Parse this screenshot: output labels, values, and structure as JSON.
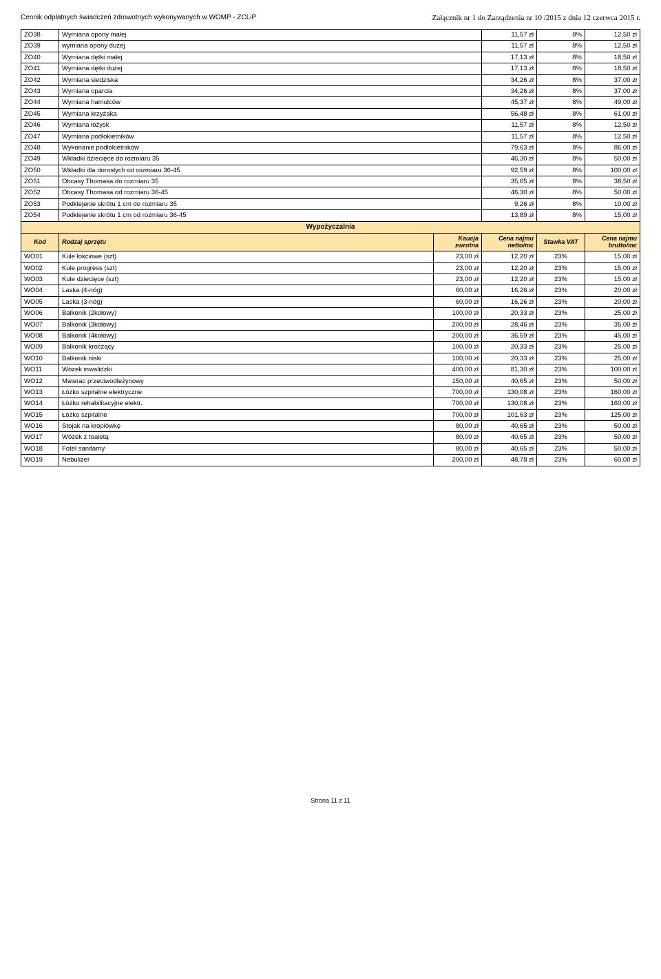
{
  "header": {
    "left": "Cennik odpłatnych świadczeń zdrowotnych wykonywanych w WOMP - ZCLiP",
    "right": "Załącznik nr 1 do Zarządzenia nr 10 /2015 z dnia 12 czerwca 2015 r."
  },
  "table1": {
    "rows": [
      {
        "code": "ZO38",
        "desc": "Wymiana opony małej",
        "v1": "11,57 zł",
        "v2": "8%",
        "v3": "12,50 zł"
      },
      {
        "code": "ZO39",
        "desc": "wymiana opony dużej",
        "v1": "11,57 zł",
        "v2": "8%",
        "v3": "12,50 zł"
      },
      {
        "code": "ZO40",
        "desc": "Wymiana dętki małej",
        "v1": "17,13 zł",
        "v2": "8%",
        "v3": "18,50 zł"
      },
      {
        "code": "ZO41",
        "desc": "Wymiana dętki dużej",
        "v1": "17,13 zł",
        "v2": "8%",
        "v3": "18,50 zł"
      },
      {
        "code": "ZO42",
        "desc": "Wymiana siedziska",
        "v1": "34,26 zł",
        "v2": "8%",
        "v3": "37,00 zł"
      },
      {
        "code": "ZO43",
        "desc": "Wymiana oparcia",
        "v1": "34,26 zł",
        "v2": "8%",
        "v3": "37,00 zł"
      },
      {
        "code": "ZO44",
        "desc": "Wymiana hamulców",
        "v1": "45,37 zł",
        "v2": "8%",
        "v3": "49,00 zł"
      },
      {
        "code": "ZO45",
        "desc": "Wymiana krzyżaka",
        "v1": "56,48 zł",
        "v2": "8%",
        "v3": "61,00 zł"
      },
      {
        "code": "ZO46",
        "desc": "Wymiana łożysk",
        "v1": "11,57 zł",
        "v2": "8%",
        "v3": "12,50 zł"
      },
      {
        "code": "ZO47",
        "desc": "Wymiana podłokietników",
        "v1": "11,57 zł",
        "v2": "8%",
        "v3": "12,50 zł"
      },
      {
        "code": "ZO48",
        "desc": "Wykonanie podłokietników",
        "v1": "79,63 zł",
        "v2": "8%",
        "v3": "86,00 zł"
      },
      {
        "code": "ZO49",
        "desc": "Wkładki dziecięce do rozmiaru 35",
        "v1": "46,30 zł",
        "v2": "8%",
        "v3": "50,00 zł"
      },
      {
        "code": "ZO50",
        "desc": "Wkładki dla dorosłych od rozmiaru 36-45",
        "v1": "92,59 zł",
        "v2": "8%",
        "v3": "100,00 zł"
      },
      {
        "code": "ZO51",
        "desc": "Obcasy Thomasa do rozmiaru 35",
        "v1": "35,65 zł",
        "v2": "8%",
        "v3": "38,50 zł"
      },
      {
        "code": "ZO52",
        "desc": "Obcasy Thomasa od rozmiaru 36-45",
        "v1": "46,30 zł",
        "v2": "8%",
        "v3": "50,00 zł"
      },
      {
        "code": "ZO53",
        "desc": "Podklejenie skrótu 1 cm do rozmiaru 35",
        "v1": "9,26 zł",
        "v2": "8%",
        "v3": "10,00 zł"
      },
      {
        "code": "ZO54",
        "desc": "Podklejenie skrótu 1 cm od rozmiaru 36-45",
        "v1": "13,89 zł",
        "v2": "8%",
        "v3": "15,00 zł"
      }
    ]
  },
  "wypo": {
    "title": "Wypożyczalnia",
    "headers": {
      "kod": "Kod",
      "rodzaj": "Rodzaj sprzętu",
      "kaucja": "Kaucja zwrotna",
      "netto": "Cena najmu netto/mc",
      "vat": "Stawka VAT",
      "brutto": "Cena najmu brutto/mc"
    },
    "rows": [
      {
        "code": "WO01",
        "desc": "Kule łokciowe (szt)",
        "kaucja": "23,00 zł",
        "netto": "12,20 zł",
        "vat": "23%",
        "brutto": "15,00 zł"
      },
      {
        "code": "WO02",
        "desc": "Kule progress (szt)",
        "kaucja": "23,00 zł",
        "netto": "12,20 zł",
        "vat": "23%",
        "brutto": "15,00 zł"
      },
      {
        "code": "WO03",
        "desc": "Kule dziecięce (szt)",
        "kaucja": "23,00 zł",
        "netto": "12,20 zł",
        "vat": "23%",
        "brutto": "15,00 zł"
      },
      {
        "code": "WO04",
        "desc": "Laska (4-nóg)",
        "kaucja": "60,00 zł",
        "netto": "16,26 zł",
        "vat": "23%",
        "brutto": "20,00 zł"
      },
      {
        "code": "WO05",
        "desc": "Laska (3-nóg)",
        "kaucja": "60,00 zł",
        "netto": "16,26 zł",
        "vat": "23%",
        "brutto": "20,00 zł"
      },
      {
        "code": "WO06",
        "desc": "Balkonik (2kołowy)",
        "kaucja": "100,00 zł",
        "netto": "20,33 zł",
        "vat": "23%",
        "brutto": "25,00 zł"
      },
      {
        "code": "WO07",
        "desc": "Balkonik (3kołowy)",
        "kaucja": "200,00 zł",
        "netto": "28,46 zł",
        "vat": "23%",
        "brutto": "35,00 zł"
      },
      {
        "code": "WO08",
        "desc": "Balkonik (4kołowy)",
        "kaucja": "200,00 zł",
        "netto": "36,59 zł",
        "vat": "23%",
        "brutto": "45,00 zł"
      },
      {
        "code": "WO09",
        "desc": "Balkonik kroczący",
        "kaucja": "100,00 zł",
        "netto": "20,33 zł",
        "vat": "23%",
        "brutto": "25,00 zł"
      },
      {
        "code": "WO10",
        "desc": "Balkonik niski",
        "kaucja": "100,00 zł",
        "netto": "20,33 zł",
        "vat": "23%",
        "brutto": "25,00 zł"
      },
      {
        "code": "WO11",
        "desc": "Wózek inwalidzki",
        "kaucja": "400,00 zł",
        "netto": "81,30 zł",
        "vat": "23%",
        "brutto": "100,00 zł"
      },
      {
        "code": "WO12",
        "desc": "Materac przeciwodleżynowy",
        "kaucja": "150,00 zł",
        "netto": "40,65 zł",
        "vat": "23%",
        "brutto": "50,00 zł"
      },
      {
        "code": "WO13",
        "desc": "Łóżko szpitalne elektryczne",
        "kaucja": "700,00 zł",
        "netto": "130,08 zł",
        "vat": "23%",
        "brutto": "160,00 zł"
      },
      {
        "code": "WO14",
        "desc": "Łóżko rehabilitacyjne elektr.",
        "kaucja": "700,00 zł",
        "netto": "130,08 zł",
        "vat": "23%",
        "brutto": "160,00 zł"
      },
      {
        "code": "WO15",
        "desc": "Łóżko szpitalne",
        "kaucja": "700,00 zł",
        "netto": "101,63 zł",
        "vat": "23%",
        "brutto": "125,00 zł"
      },
      {
        "code": "WO16",
        "desc": "Stojak na kroplówkę",
        "kaucja": "80,00 zł",
        "netto": "40,65 zł",
        "vat": "23%",
        "brutto": "50,00 zł"
      },
      {
        "code": "WO17",
        "desc": "Wózek z toaletą",
        "kaucja": "80,00 zł",
        "netto": "40,65 zł",
        "vat": "23%",
        "brutto": "50,00 zł"
      },
      {
        "code": "WO18",
        "desc": "Fotel sanitarny",
        "kaucja": "80,00 zł",
        "netto": "40,65 zł",
        "vat": "23%",
        "brutto": "50,00 zł"
      },
      {
        "code": "WO19",
        "desc": "Nebulizer",
        "kaucja": "200,00 zł",
        "netto": "48,78 zł",
        "vat": "23%",
        "brutto": "60,00 zł"
      }
    ]
  },
  "footer": "Strona 11 z 11"
}
